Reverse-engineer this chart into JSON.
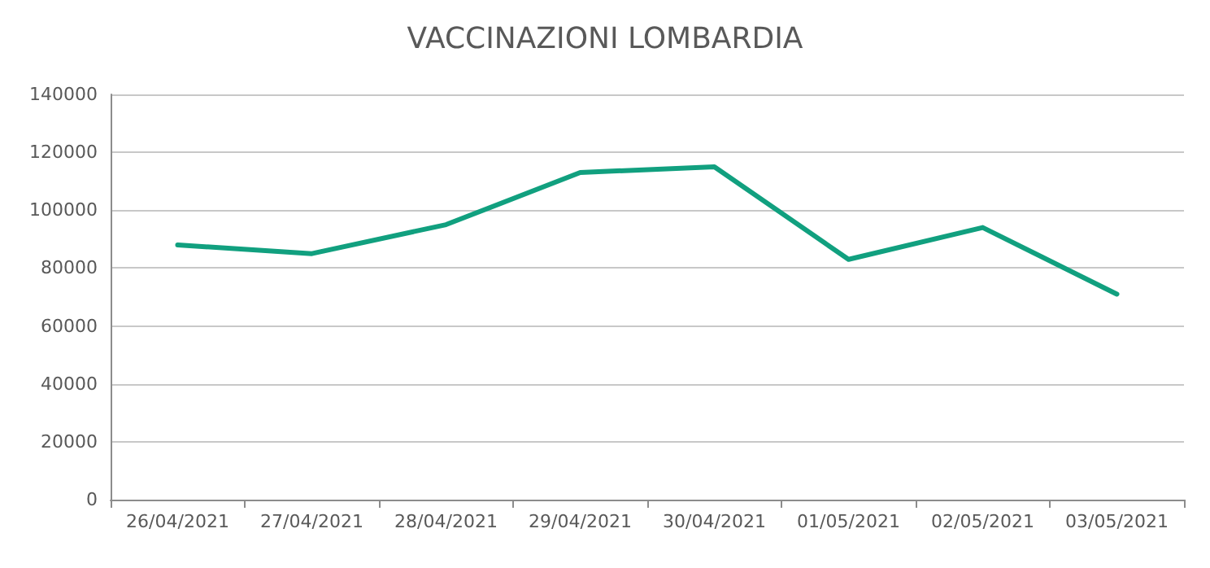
{
  "chart_data": {
    "type": "line",
    "title": "VACCINAZIONI LOMBARDIA",
    "categories": [
      "26/04/2021",
      "27/04/2021",
      "28/04/2021",
      "29/04/2021",
      "30/04/2021",
      "01/05/2021",
      "02/05/2021",
      "03/05/2021"
    ],
    "series": [
      {
        "color": "#11a07f",
        "values": [
          88000,
          85000,
          95000,
          113000,
          115000,
          83000,
          94000,
          71000
        ]
      }
    ],
    "ylim": [
      0,
      140000
    ],
    "yticks": [
      0,
      20000,
      40000,
      60000,
      80000,
      100000,
      120000,
      140000
    ],
    "grid": "y",
    "marker": "none",
    "line_style": "solid"
  }
}
